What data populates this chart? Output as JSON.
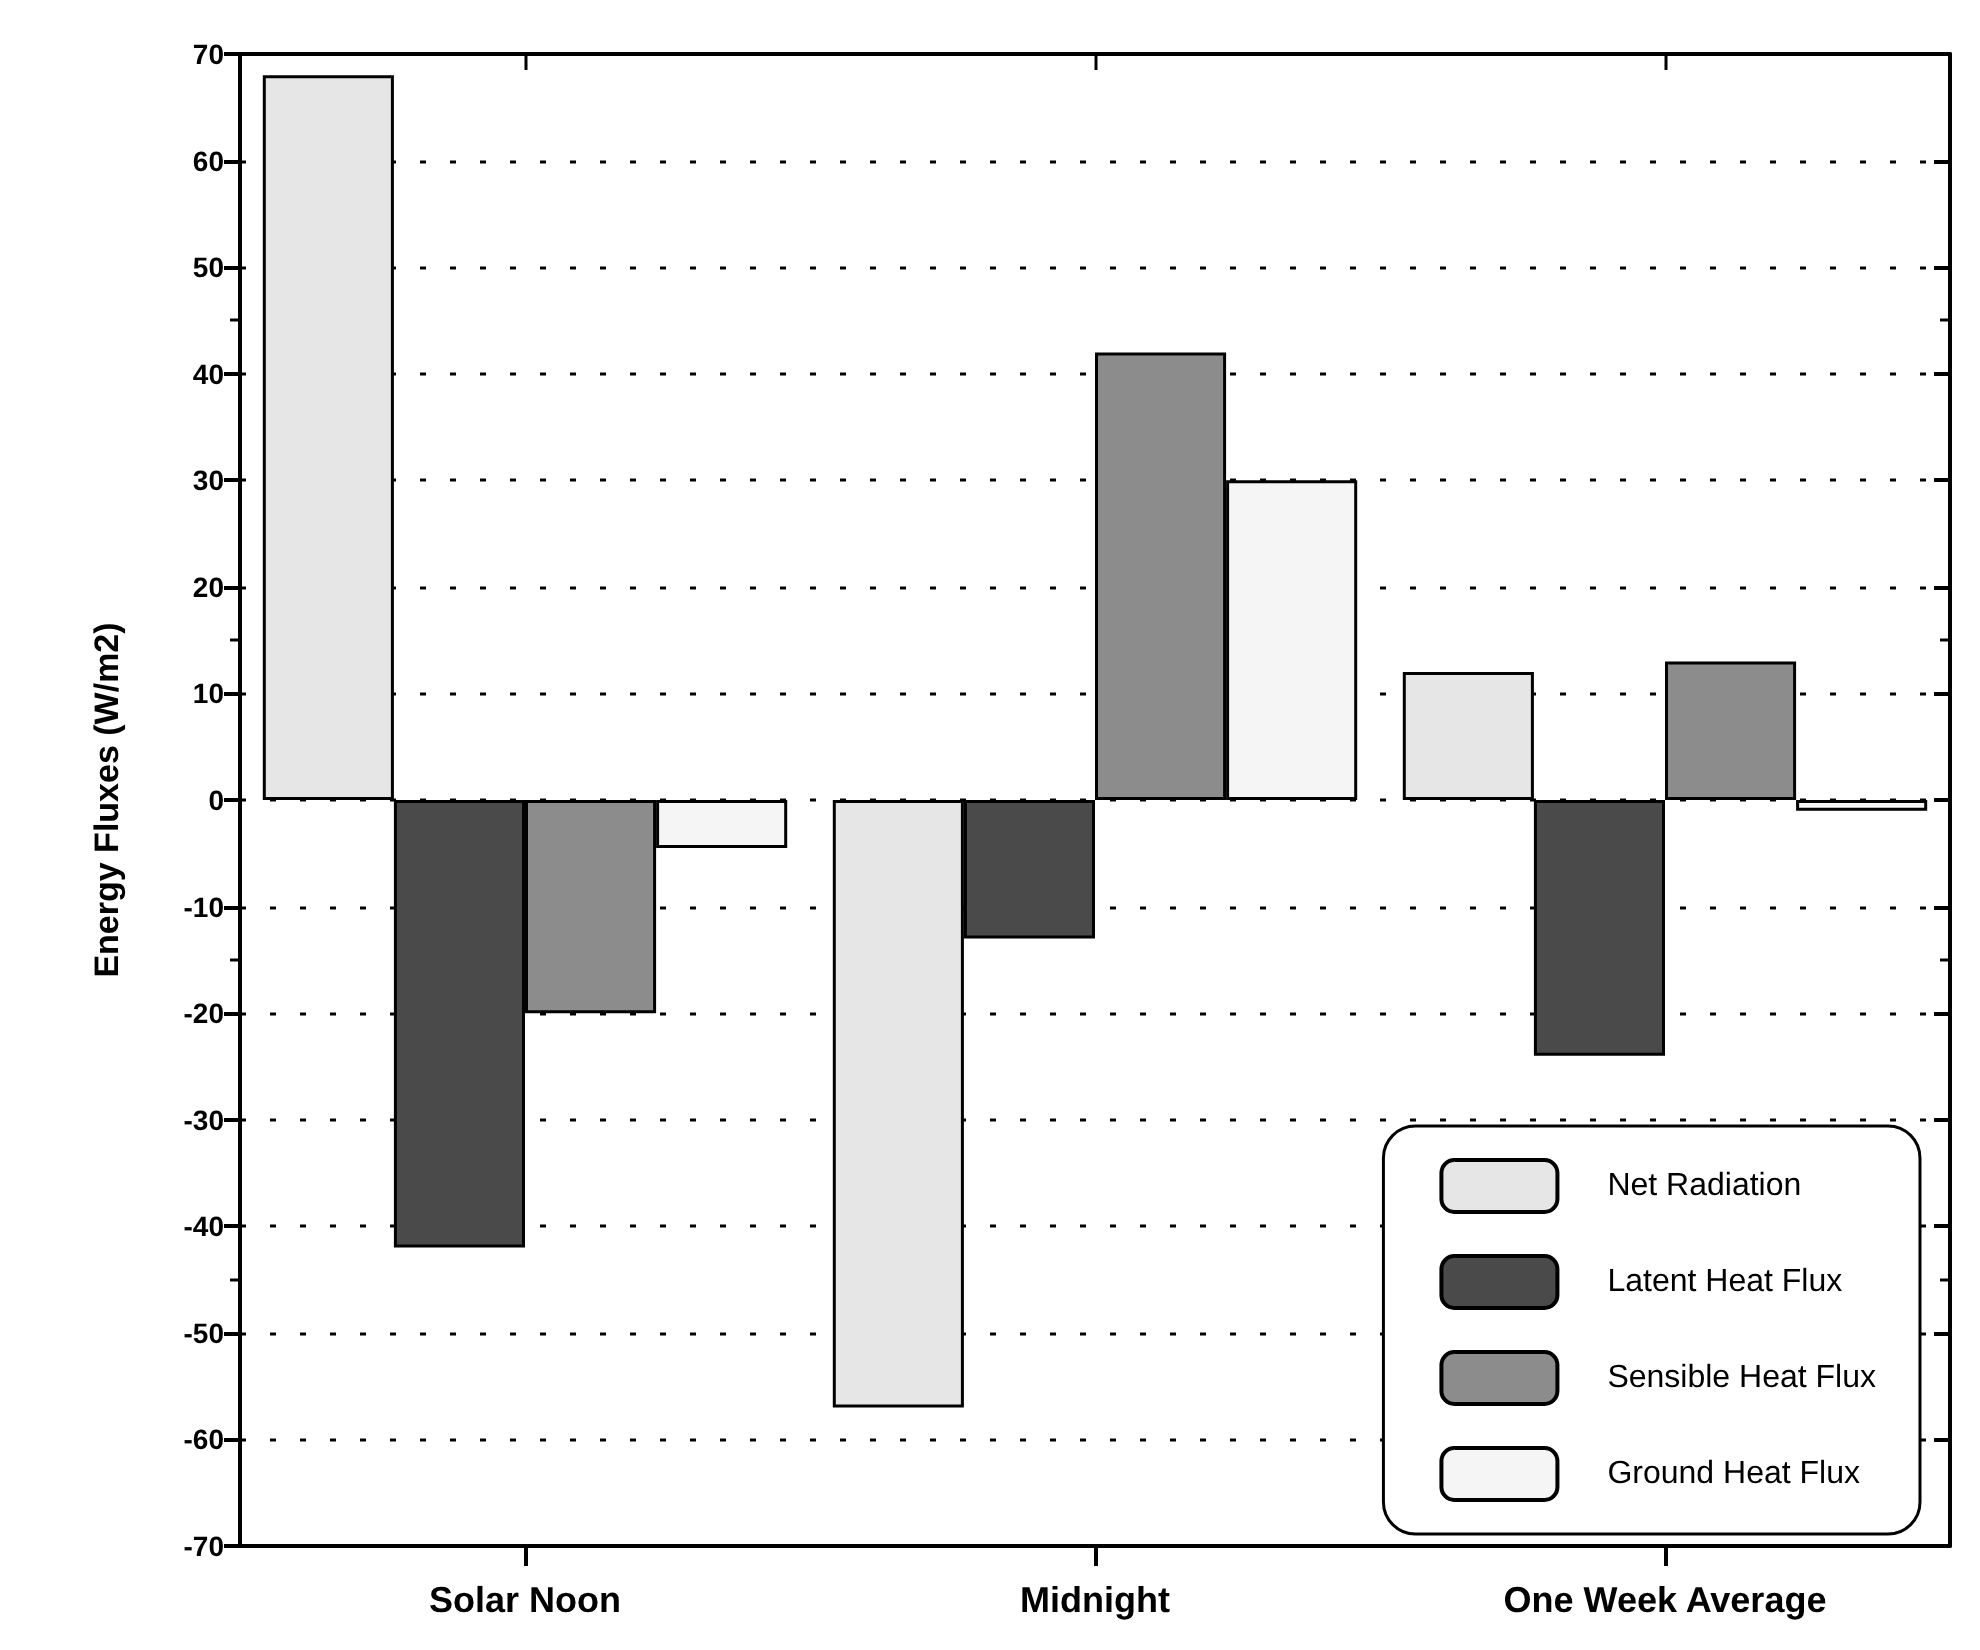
{
  "chart_data": {
    "type": "bar",
    "ylabel": "Energy Fluxes (W/m2)",
    "categories": [
      "Solar Noon",
      "Midnight",
      "One Week Average"
    ],
    "series": [
      {
        "name": "Net Radiation",
        "color": "#e6e6e6",
        "values": [
          68,
          -57,
          12
        ]
      },
      {
        "name": "Latent Heat Flux",
        "color": "#4a4a4a",
        "values": [
          -42,
          -13,
          -24
        ]
      },
      {
        "name": "Sensible Heat Flux",
        "color": "#8c8c8c",
        "values": [
          -20,
          42,
          13
        ]
      },
      {
        "name": "Ground Heat Flux",
        "color": "#f5f5f5",
        "values": [
          -4.5,
          30,
          -1
        ]
      }
    ],
    "ylim": [
      -70,
      70
    ],
    "yticks": [
      -70,
      -60,
      -50,
      -40,
      -30,
      -20,
      -10,
      0,
      10,
      20,
      30,
      40,
      50,
      60,
      70
    ],
    "grid": "y",
    "legend": "bottom right"
  }
}
